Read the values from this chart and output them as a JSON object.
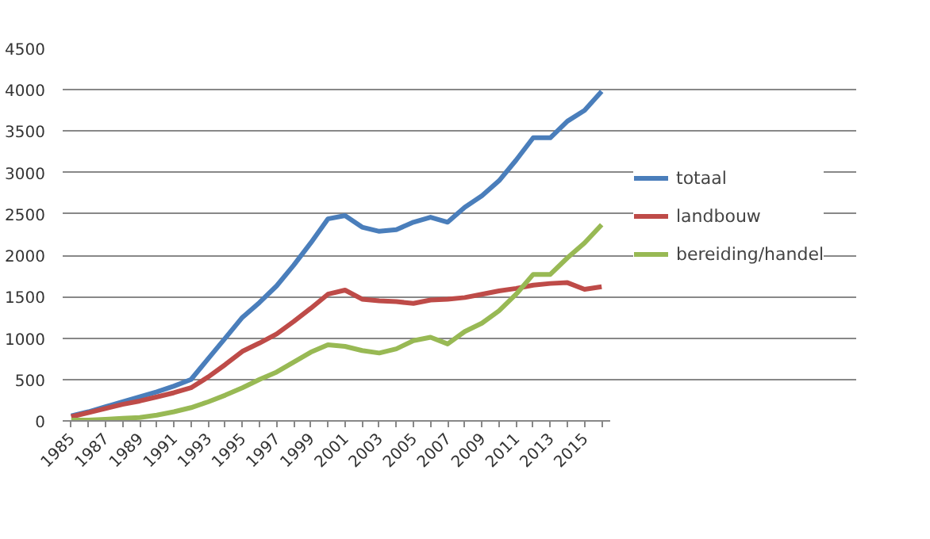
{
  "chart_data": {
    "type": "line",
    "categories": [
      "1985",
      null,
      "1987",
      null,
      "1989",
      null,
      "1991",
      null,
      "1993",
      null,
      "1995",
      null,
      "1997",
      null,
      "1999",
      null,
      "2001",
      null,
      "2003",
      null,
      "2005",
      null,
      "2007",
      null,
      "2009",
      null,
      "2011",
      null,
      "2013",
      null,
      "2015",
      null
    ],
    "series": [
      {
        "name": "totaal",
        "color": "#4a7ebb",
        "values": [
          60,
          110,
          170,
          230,
          290,
          350,
          420,
          500,
          750,
          1000,
          1250,
          1430,
          1630,
          1880,
          2150,
          2440,
          2480,
          2340,
          2290,
          2310,
          2400,
          2460,
          2400,
          2580,
          2720,
          2900,
          3150,
          3420,
          3420,
          3620,
          3750,
          3980
        ]
      },
      {
        "name": "landbouw",
        "color": "#be4b48",
        "values": [
          50,
          100,
          150,
          200,
          240,
          290,
          340,
          400,
          530,
          680,
          840,
          940,
          1050,
          1200,
          1360,
          1530,
          1580,
          1470,
          1450,
          1440,
          1420,
          1460,
          1470,
          1490,
          1530,
          1570,
          1600,
          1640,
          1660,
          1670,
          1590,
          1620
        ]
      },
      {
        "name": "bereiding/handel",
        "color": "#98b954",
        "values": [
          10,
          10,
          20,
          30,
          40,
          70,
          110,
          160,
          230,
          310,
          400,
          500,
          590,
          710,
          830,
          920,
          900,
          850,
          820,
          870,
          970,
          1010,
          930,
          1080,
          1180,
          1330,
          1530,
          1770,
          1770,
          1970,
          2150,
          2370
        ]
      }
    ],
    "ylim": [
      0,
      4500
    ],
    "yticks": [
      0,
      500,
      1000,
      1500,
      2000,
      2500,
      3000,
      3500,
      4000,
      4500
    ],
    "grid": "y",
    "legend": "right",
    "marker": "none",
    "line_style": "solid"
  }
}
